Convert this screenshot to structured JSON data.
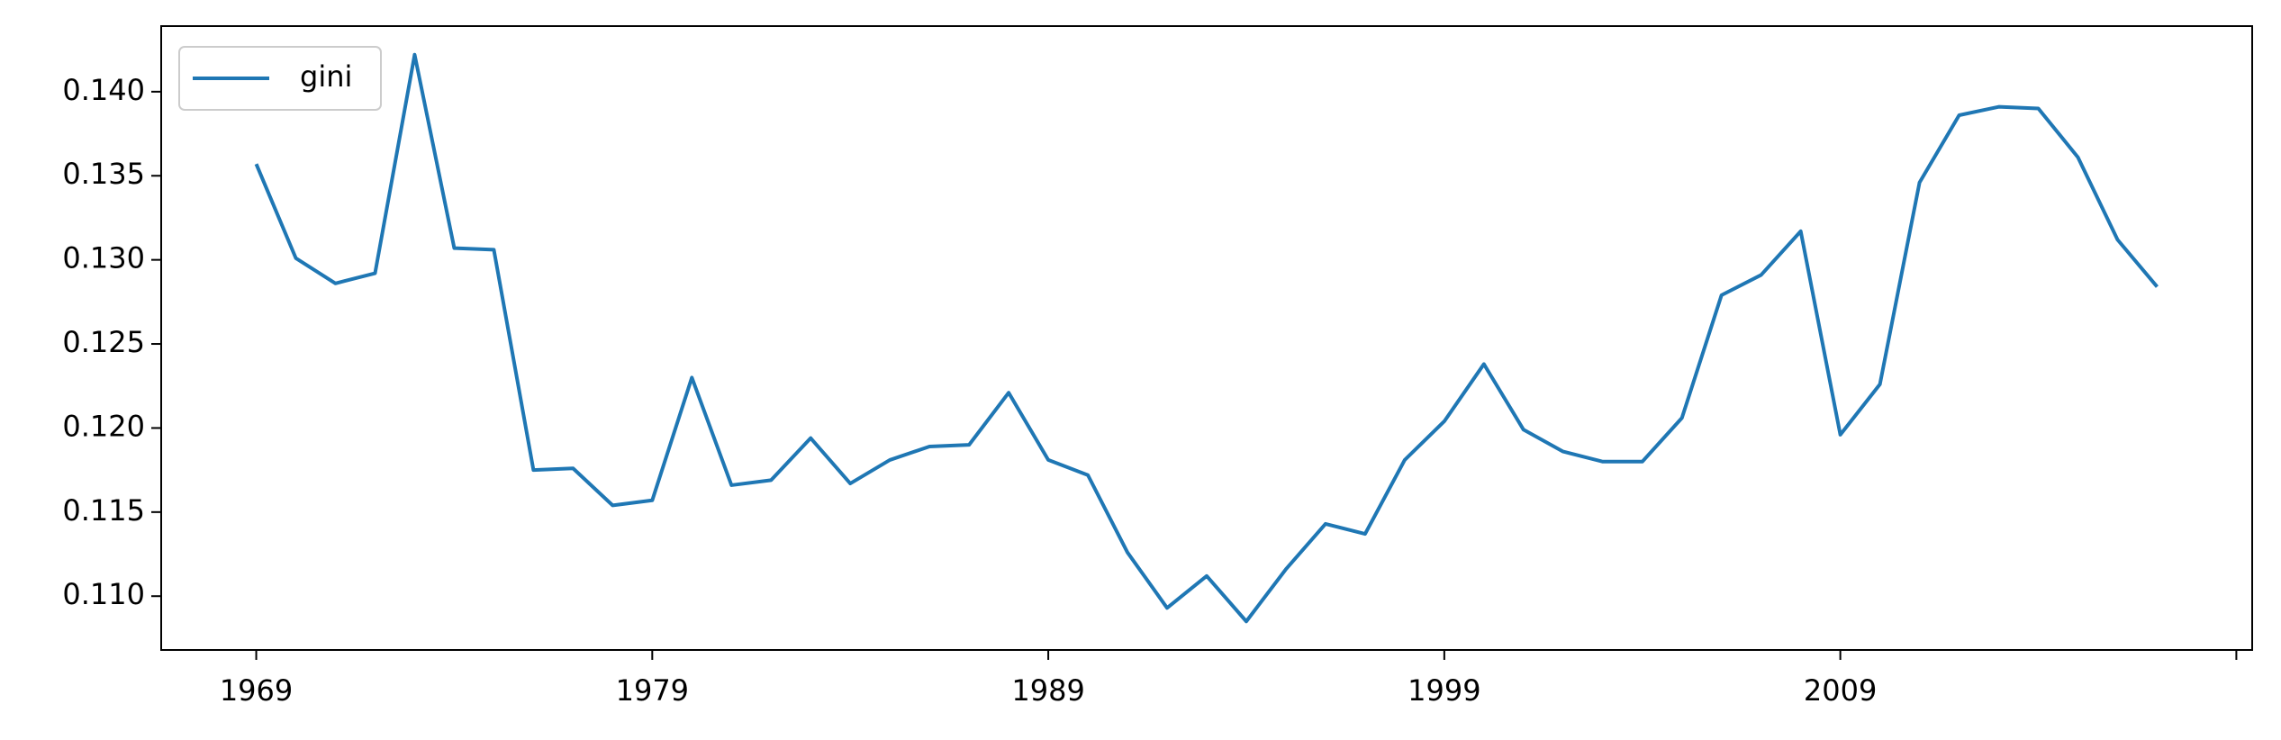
{
  "chart_data": {
    "type": "line",
    "x": [
      1969,
      1970,
      1971,
      1972,
      1973,
      1974,
      1975,
      1976,
      1977,
      1978,
      1979,
      1980,
      1981,
      1982,
      1983,
      1984,
      1985,
      1986,
      1987,
      1988,
      1989,
      1990,
      1991,
      1992,
      1993,
      1994,
      1995,
      1996,
      1997,
      1998,
      1999,
      2000,
      2001,
      2002,
      2003,
      2004,
      2005,
      2006,
      2007,
      2008,
      2009,
      2010,
      2011,
      2012,
      2013,
      2014,
      2015,
      2016,
      2017
    ],
    "series": [
      {
        "name": "gini",
        "color": "#1f77b4",
        "values": [
          0.1357,
          0.1301,
          0.1286,
          0.1292,
          0.1422,
          0.1307,
          0.1306,
          0.1175,
          0.1176,
          0.1154,
          0.1157,
          0.123,
          0.1166,
          0.1169,
          0.1194,
          0.1167,
          0.1181,
          0.1189,
          0.119,
          0.1221,
          0.1181,
          0.1172,
          0.1126,
          0.1093,
          0.1112,
          0.1085,
          0.1116,
          0.1143,
          0.1137,
          0.1181,
          0.1204,
          0.1238,
          0.1199,
          0.1186,
          0.118,
          0.118,
          0.1206,
          0.1279,
          0.1291,
          0.1317,
          0.1196,
          0.1226,
          0.1346,
          0.1386,
          0.1391,
          0.139,
          0.1361,
          0.1312,
          0.1284
        ]
      }
    ],
    "xlim": [
      1966.6,
      2019.4
    ],
    "xticks": [
      1969,
      1979,
      1989,
      1999,
      2009
    ],
    "unlabeled_xticks": [
      2019
    ],
    "ylim": [
      0.1068,
      0.1439
    ],
    "yticks": [
      {
        "value": 0.11,
        "label": "0.110"
      },
      0.115,
      {
        "value": 0.12,
        "label": "0.120"
      },
      0.125,
      {
        "value": 0.13,
        "label": "0.130"
      },
      0.135,
      {
        "value": 0.14,
        "label": "0.140"
      }
    ],
    "grid": false,
    "legend": "upper left"
  }
}
